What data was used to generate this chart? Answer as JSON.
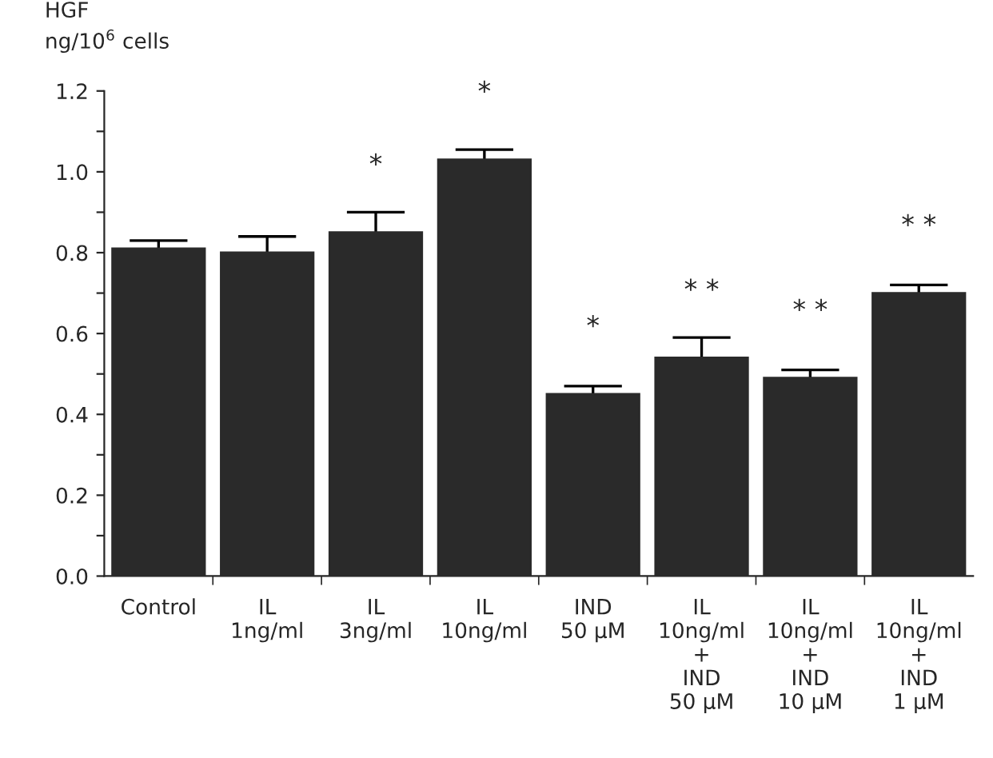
{
  "chart_data": {
    "type": "bar",
    "ylabel": "HGF\nng/10$^{6}$ cells",
    "categories": [
      "Control",
      "IL\n1ng/ml",
      "IL\n3ng/ml",
      "IL\n10ng/ml",
      "IND\n50 μM",
      "IL\n10ng/ml\n+\nIND\n50 μM",
      "IL\n10ng/ml\n+\nIND\n10 μM",
      "IL\n10ng/ml\n+\nIND\n1 μM"
    ],
    "values": [
      0.81,
      0.8,
      0.85,
      1.03,
      0.45,
      0.54,
      0.49,
      0.7
    ],
    "errors": [
      0.02,
      0.04,
      0.05,
      0.025,
      0.02,
      0.05,
      0.02,
      0.02
    ],
    "color": "#2a2a2a",
    "ylim": [
      0,
      1.2
    ],
    "yticks": [
      {
        "value": 0,
        "label": "0.0"
      },
      {
        "value": 0.1,
        "label": null
      },
      {
        "value": 0.2,
        "label": "0.2"
      },
      {
        "value": 0.3,
        "label": null
      },
      {
        "value": 0.4,
        "label": "0.4"
      },
      {
        "value": 0.5,
        "label": null
      },
      {
        "value": 0.6,
        "label": "0.6"
      },
      {
        "value": 0.7,
        "label": null
      },
      {
        "value": 0.8,
        "label": "0.8"
      },
      {
        "value": 0.9,
        "label": null
      },
      {
        "value": 1.0,
        "label": "1.0"
      },
      {
        "value": 1.1,
        "label": null
      },
      {
        "value": 1.2,
        "label": "1.2"
      }
    ],
    "annotations": [
      {
        "text": "*",
        "x": "IL\n3ng/ml",
        "y": 0.85
      },
      {
        "text": "*",
        "x": "IL\n10ng/ml",
        "y": 1.03
      },
      {
        "text": "*",
        "x": "IND\n50 μM",
        "y": 0.45
      },
      {
        "text": "* *",
        "x": "IL\n10ng/ml\n+\nIND\n50 μM",
        "y": 0.54
      },
      {
        "text": "* *",
        "x": "IL\n10ng/ml\n+\nIND\n10 μM",
        "y": 0.49
      },
      {
        "text": "* *",
        "x": "IL\n10ng/ml\n+\nIND\n1 μM",
        "y": 0.7
      }
    ],
    "grid": false,
    "legend": false
  }
}
